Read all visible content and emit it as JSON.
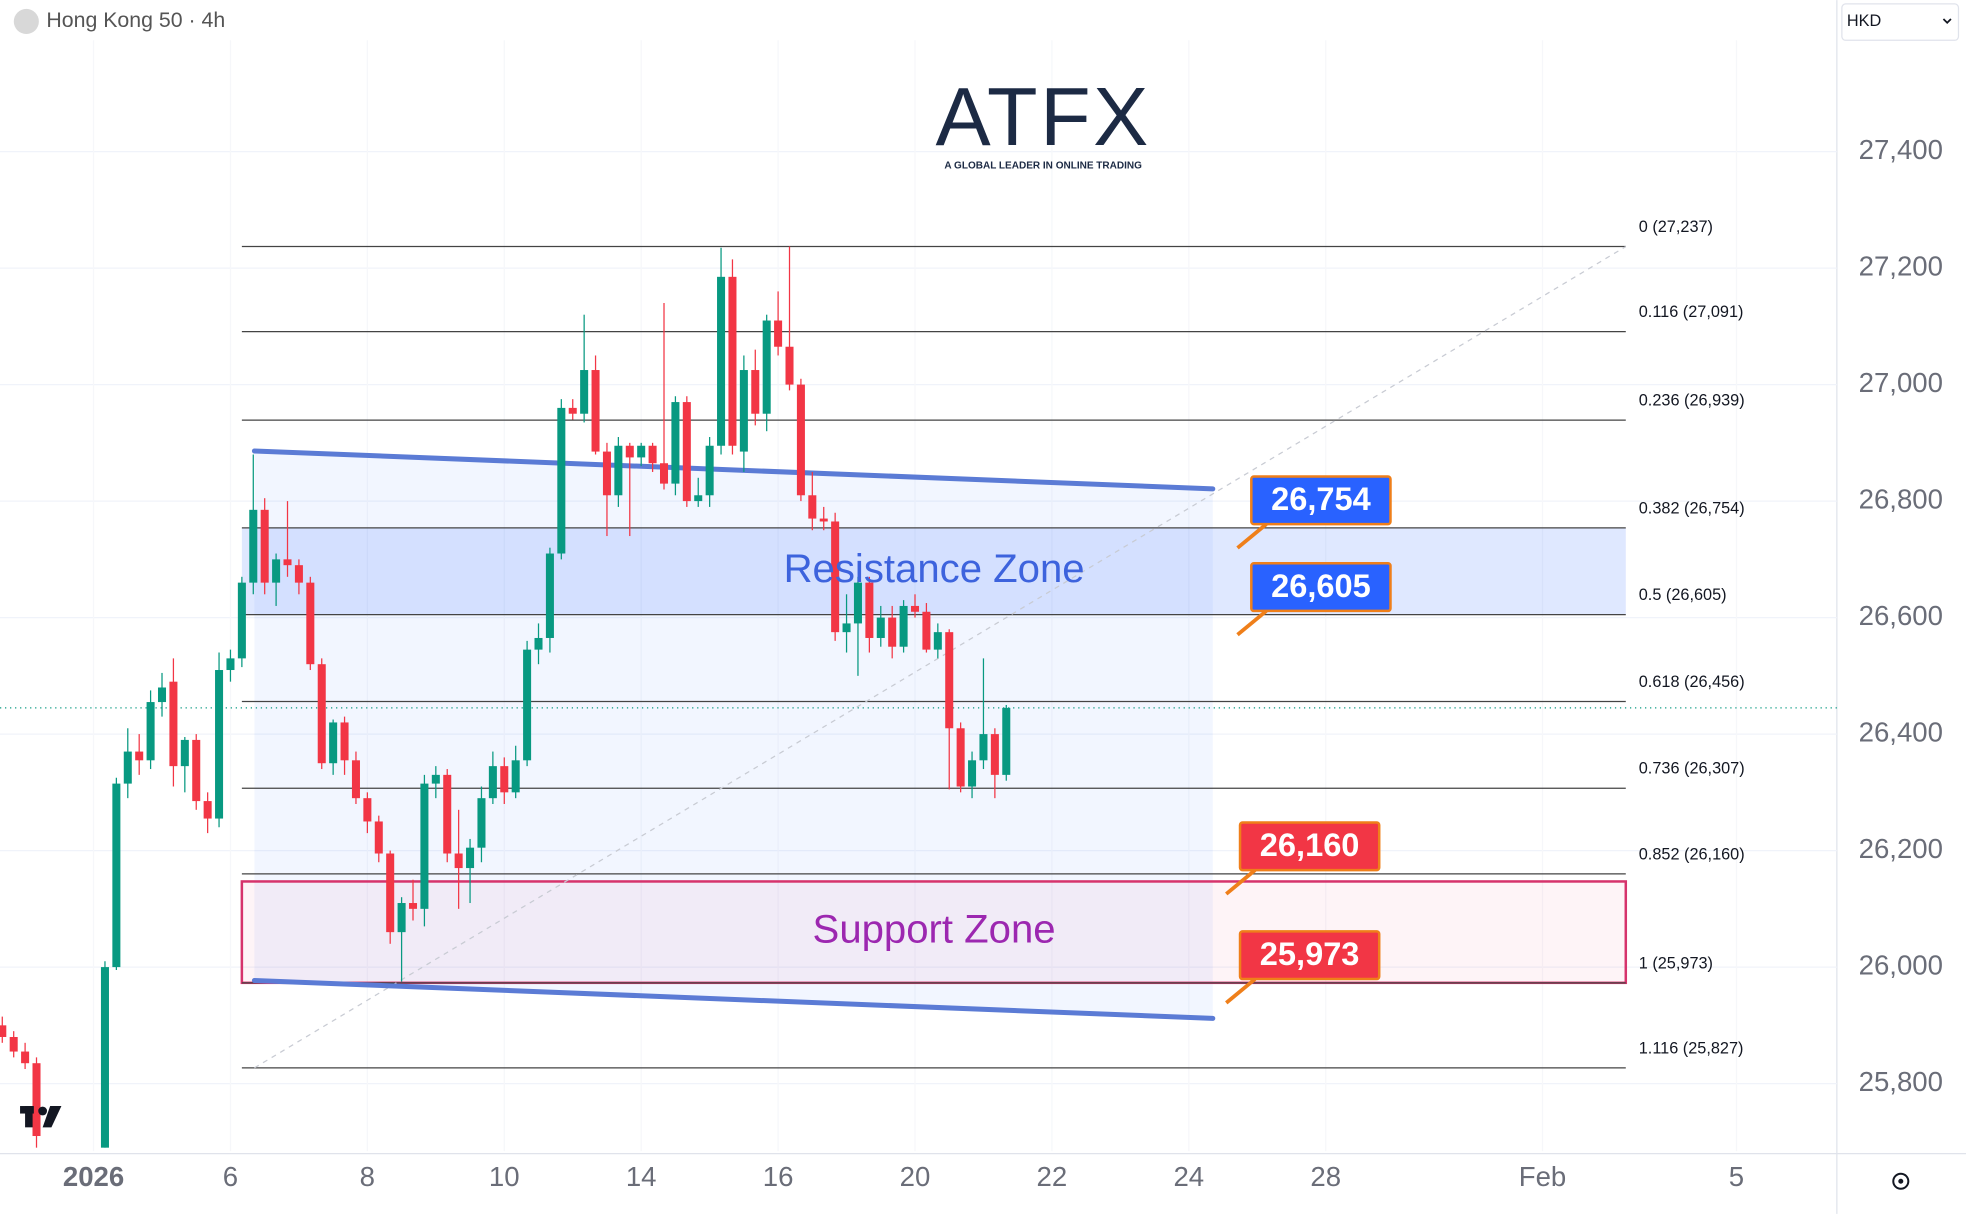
{
  "chart_data": {
    "type": "candlestick",
    "title": "Hong Kong 50 · 4h",
    "currency": "HKD",
    "brand": {
      "name": "ATFX",
      "tagline": "A GLOBAL LEADER IN ONLINE TRADING"
    },
    "up_color": "#089981",
    "down_color": "#f23645",
    "grid": true,
    "xlim": [
      -9.2,
      151.8
    ],
    "xticks": [
      {
        "value": -1,
        "label": "2026"
      },
      {
        "value": 11,
        "label": "6"
      },
      {
        "value": 23,
        "label": "8"
      },
      {
        "value": 35,
        "label": "10"
      },
      {
        "value": 47,
        "label": "14"
      },
      {
        "value": 59,
        "label": "16"
      },
      {
        "value": 71,
        "label": "20"
      },
      {
        "value": 83,
        "label": "22"
      },
      {
        "value": 95,
        "label": "24"
      },
      {
        "value": 107,
        "label": "28"
      },
      {
        "value": 126,
        "label": "Feb"
      },
      {
        "value": 143,
        "label": "5"
      }
    ],
    "ylim": [
      25684,
      27660
    ],
    "yticks": [
      {
        "value": 25800,
        "label": "25,800"
      },
      {
        "value": 26000,
        "label": "26,000"
      },
      {
        "value": 26200,
        "label": "26,200"
      },
      {
        "value": 26400,
        "label": "26,400"
      },
      {
        "value": 26600,
        "label": "26,600"
      },
      {
        "value": 26800,
        "label": "26,800"
      },
      {
        "value": 27000,
        "label": "27,000"
      },
      {
        "value": 27200,
        "label": "27,200"
      },
      {
        "value": 27400,
        "label": "27,400"
      }
    ],
    "x": [
      -9,
      -8,
      -7,
      -6,
      0,
      1,
      2,
      3,
      4,
      5,
      6,
      7,
      8,
      9,
      10,
      11,
      12,
      13,
      14,
      15,
      16,
      17,
      18,
      19,
      20,
      21,
      22,
      23,
      24,
      25,
      26,
      27,
      28,
      29,
      30,
      31,
      32,
      33,
      34,
      35,
      36,
      37,
      38,
      39,
      40,
      41,
      42,
      43,
      44,
      45,
      46,
      47,
      48,
      49,
      50,
      51,
      52,
      53,
      54,
      55,
      56,
      57,
      58,
      59,
      60,
      61,
      62,
      63,
      64,
      65,
      66,
      67,
      68,
      69,
      70,
      71,
      72,
      73,
      74,
      75,
      76,
      77,
      78,
      79
    ],
    "open": [
      25900,
      25880,
      25855,
      25835,
      25690,
      26000,
      26315,
      26370,
      26355,
      26455,
      26490,
      26345,
      26390,
      26285,
      26255,
      26510,
      26530,
      26660,
      26785,
      26660,
      26700,
      26690,
      26660,
      26520,
      26350,
      26420,
      26355,
      26290,
      26250,
      26195,
      26060,
      26110,
      26100,
      26315,
      26330,
      26195,
      26170,
      26205,
      26290,
      26345,
      26300,
      26355,
      26545,
      26565,
      26710,
      26960,
      26950,
      27025,
      26885,
      26810,
      26895,
      26875,
      26895,
      26865,
      26830,
      26970,
      26800,
      26810,
      26895,
      27185,
      26885,
      27025,
      26950,
      27110,
      27065,
      27000,
      26810,
      26770,
      26765,
      26575,
      26590,
      26660,
      26565,
      26600,
      26550,
      26620,
      26610,
      26545,
      26575,
      26410,
      26310,
      26355,
      26400,
      26330
    ],
    "high": [
      25915,
      25890,
      25870,
      25845,
      26010,
      26325,
      26410,
      26400,
      26475,
      26505,
      26530,
      26395,
      26400,
      26300,
      26540,
      26545,
      26670,
      26880,
      26805,
      26710,
      26800,
      26700,
      26670,
      26530,
      26425,
      26430,
      26370,
      26300,
      26260,
      26200,
      26120,
      26150,
      26330,
      26345,
      26340,
      26270,
      26220,
      26310,
      26370,
      26360,
      26380,
      26560,
      26590,
      26720,
      26975,
      26975,
      27120,
      27050,
      26900,
      26910,
      26900,
      26900,
      26900,
      27140,
      26980,
      26980,
      26840,
      26910,
      27235,
      27215,
      27050,
      27060,
      27120,
      27160,
      27237,
      27010,
      26850,
      26790,
      26780,
      26640,
      26670,
      26670,
      26620,
      26620,
      26630,
      26640,
      26625,
      26590,
      26580,
      26420,
      26370,
      26530,
      26410,
      26450
    ],
    "low": [
      25870,
      25845,
      25825,
      25690,
      25690,
      25995,
      26290,
      26330,
      26340,
      26430,
      26310,
      26300,
      26270,
      26230,
      26240,
      26490,
      26515,
      26640,
      26640,
      26620,
      26670,
      26640,
      26510,
      26340,
      26330,
      26330,
      26280,
      26230,
      26180,
      26040,
      25975,
      26080,
      26070,
      26290,
      26180,
      26100,
      26110,
      26180,
      26280,
      26280,
      26290,
      26345,
      26520,
      26540,
      26700,
      26940,
      26935,
      26880,
      26740,
      26790,
      26740,
      26860,
      26850,
      26820,
      26810,
      26790,
      26790,
      26790,
      26880,
      26880,
      26850,
      26930,
      26920,
      27050,
      26990,
      26800,
      26750,
      26750,
      26560,
      26540,
      26500,
      26540,
      26550,
      26530,
      26540,
      26600,
      26540,
      26530,
      26305,
      26300,
      26290,
      26340,
      26290,
      26320
    ],
    "close": [
      25880,
      25855,
      25835,
      25710,
      26000,
      26315,
      26370,
      26355,
      26455,
      26480,
      26345,
      26390,
      26285,
      26255,
      26510,
      26530,
      26660,
      26785,
      26660,
      26700,
      26690,
      26660,
      26520,
      26350,
      26420,
      26355,
      26290,
      26250,
      26195,
      26060,
      26110,
      26100,
      26315,
      26330,
      26195,
      26170,
      26205,
      26290,
      26345,
      26300,
      26355,
      26545,
      26565,
      26710,
      26960,
      26950,
      27025,
      26885,
      26810,
      26895,
      26875,
      26895,
      26865,
      26830,
      26970,
      26800,
      26810,
      26895,
      27185,
      26895,
      27025,
      26950,
      27110,
      27065,
      27000,
      26810,
      26770,
      26765,
      26575,
      26590,
      26660,
      26565,
      26600,
      26550,
      26620,
      26610,
      26545,
      26575,
      26410,
      26310,
      26355,
      26400,
      26330,
      26445
    ],
    "fib_x": [
      12,
      133.3
    ],
    "fib_levels": [
      {
        "value": 27237,
        "label": "0 (27,237)"
      },
      {
        "value": 27091,
        "label": "0.116 (27,091)"
      },
      {
        "value": 26939,
        "label": "0.236 (26,939)"
      },
      {
        "value": 26754,
        "label": "0.382 (26,754)"
      },
      {
        "value": 26605,
        "label": "0.5 (26,605)"
      },
      {
        "value": 26456,
        "label": "0.618 (26,456)"
      },
      {
        "value": 26307,
        "label": "0.736 (26,307)"
      },
      {
        "value": 26160,
        "label": "0.852 (26,160)"
      },
      {
        "value": 25973,
        "label": "1 (25,973)"
      },
      {
        "value": 25827,
        "label": "1.116 (25,827)"
      }
    ],
    "zones": [
      {
        "label": "Resistance Zone",
        "range": [
          26605,
          26754
        ],
        "color": "#3d63dd"
      },
      {
        "label": "Support Zone",
        "range": [
          25973,
          26147
        ],
        "color": "#9c27b0"
      }
    ],
    "trendlines": [
      {
        "x": [
          13.1,
          97.1
        ],
        "values": [
          26886,
          26821
        ],
        "color": "#5b7bd5"
      },
      {
        "x": [
          13.1,
          97.1
        ],
        "values": [
          25977,
          25912
        ],
        "color": "#5b7bd5"
      }
    ],
    "price_tags": [
      {
        "value": 26754,
        "label": "26,754",
        "color": "#2962ff"
      },
      {
        "value": 26605,
        "label": "26,605",
        "color": "#2962ff"
      },
      {
        "value": 26160,
        "label": "26,160",
        "color": "#f23645"
      },
      {
        "value": 25973,
        "label": "25,973",
        "color": "#f23645"
      }
    ]
  }
}
